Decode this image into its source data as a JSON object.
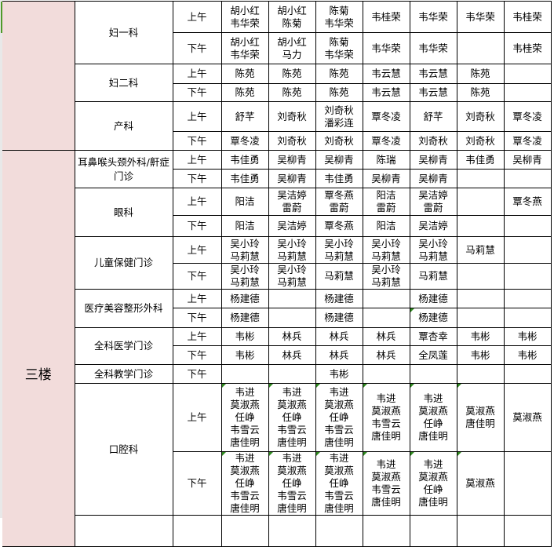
{
  "floors": [
    {
      "label": "",
      "departments": [
        {
          "name": "妇一科",
          "rows": [
            {
              "period": "上午",
              "cells": [
                "胡小红\n韦华荣",
                "胡小红\n陈菊",
                "陈菊\n韦华荣",
                "韦桂荣",
                "韦华荣",
                "韦华荣",
                "韦桂荣"
              ]
            },
            {
              "period": "下午",
              "cells": [
                "胡小红\n韦华荣",
                "胡小红\n马力",
                "陈菊\n韦华荣",
                "韦华荣",
                "韦华荣",
                "",
                "韦桂荣"
              ]
            }
          ]
        },
        {
          "name": "妇二科",
          "rows": [
            {
              "period": "上午",
              "cells": [
                "陈苑",
                "陈苑",
                "陈苑",
                "韦云慧",
                "韦云慧",
                "陈苑",
                ""
              ]
            },
            {
              "period": "下午",
              "cells": [
                "陈苑",
                "陈苑",
                "陈苑",
                "韦云慧",
                "韦云慧",
                "陈苑",
                ""
              ]
            }
          ]
        },
        {
          "name": "产科",
          "rows": [
            {
              "period": "上午",
              "cells": [
                "舒芊",
                "刘奇秋",
                "刘奇秋\n潘彩连",
                "覃冬凌",
                "舒芊",
                "刘奇秋",
                "覃冬凌"
              ]
            },
            {
              "period": "下午",
              "cells": [
                "覃冬凌",
                "刘奇秋",
                "刘奇秋",
                "覃冬凌",
                "刘奇秋",
                "刘奇秋",
                "覃冬凌"
              ]
            }
          ]
        }
      ]
    },
    {
      "label": "三楼",
      "departments": [
        {
          "name": "耳鼻喉头颈外科/鼾症门诊",
          "rows": [
            {
              "period": "上午",
              "cells": [
                "韦佳勇",
                "吴柳青",
                "吴柳青",
                "陈瑞",
                "吴柳青",
                "韦佳勇",
                "吴柳青"
              ]
            },
            {
              "period": "下午",
              "cells": [
                "韦佳勇",
                "吴柳青",
                "韦佳勇",
                "吴柳青",
                "吴柳青",
                "",
                ""
              ]
            }
          ]
        },
        {
          "name": "眼科",
          "rows": [
            {
              "period": "上午",
              "cells": [
                "阳洁",
                "吴洁婷\n雷蔚",
                "覃冬燕\n雷蔚",
                "阳洁\n雷蔚",
                "吴洁婷\n雷蔚",
                "",
                "覃冬燕"
              ]
            },
            {
              "period": "下午",
              "cells": [
                "阳洁",
                "吴洁婷",
                "覃冬燕",
                "阳洁",
                "吴洁婷",
                "",
                ""
              ]
            }
          ]
        },
        {
          "name": "儿童保健门诊",
          "rows": [
            {
              "period": "上午",
              "cells": [
                "吴小玲\n马莉慧",
                "吴小玲\n马莉慧",
                "吴小玲\n马莉慧",
                "吴小玲\n马莉慧",
                "吴小玲\n马莉慧",
                "马莉慧",
                ""
              ]
            },
            {
              "period": "下午",
              "cells": [
                "吴小玲\n马莉慧",
                "吴小玲\n马莉慧",
                "马莉慧",
                "吴小玲\n马莉慧",
                "马莉慧",
                "",
                ""
              ]
            }
          ]
        },
        {
          "name": "医疗美容整形外科",
          "rows": [
            {
              "period": "上午",
              "cells": [
                "杨建德",
                "",
                "杨建德",
                "",
                "杨建德",
                "",
                ""
              ]
            },
            {
              "period": "下午",
              "cells": [
                "杨建德",
                "",
                "杨建德",
                "",
                "杨建德",
                "",
                ""
              ]
            }
          ]
        },
        {
          "name": "全科医学门诊",
          "rows": [
            {
              "period": "上午",
              "cells": [
                "韦彬",
                "林兵",
                "林兵",
                "林兵",
                "覃杏幸",
                "韦彬",
                "韦彬"
              ]
            },
            {
              "period": "下午",
              "cells": [
                "韦彬",
                "林兵",
                "林兵",
                "林兵",
                "全凤莲",
                "韦彬",
                "韦彬"
              ]
            }
          ]
        },
        {
          "name": "全科教学门诊",
          "rows": [
            {
              "period": "下午",
              "cells": [
                "",
                "",
                "韦彬",
                "",
                "",
                "",
                ""
              ]
            }
          ]
        },
        {
          "name": "口腔科",
          "rows": [
            {
              "period": "上午",
              "cells": [
                "韦进\n莫淑燕\n任峥\n韦雪云\n唐佳明",
                "韦进\n莫淑燕\n任峥\n韦雪云\n唐佳明",
                "韦进\n莫淑燕\n任峥\n韦雪云\n唐佳明",
                "韦进\n莫淑燕\n韦雪云\n唐佳明",
                "韦进\n莫淑燕\n任峥\n唐佳明",
                "莫淑燕\n唐佳明",
                "莫淑燕"
              ]
            },
            {
              "period": "下午",
              "cells": [
                "韦进\n莫淑燕\n任峥\n韦雪云\n唐佳明",
                "韦进\n莫淑燕\n任峥\n韦雪云\n唐佳明",
                "韦进\n莫淑燕\n任峥\n韦雪云\n唐佳明",
                "韦进\n莫淑燕\n韦雪云\n唐佳明",
                "韦进\n莫淑燕\n任峥\n唐佳明",
                "莫淑燕",
                ""
              ]
            }
          ]
        }
      ]
    }
  ],
  "colors": {
    "floor_bg": "#f2dcdb",
    "marker": "#2f8a1f"
  }
}
